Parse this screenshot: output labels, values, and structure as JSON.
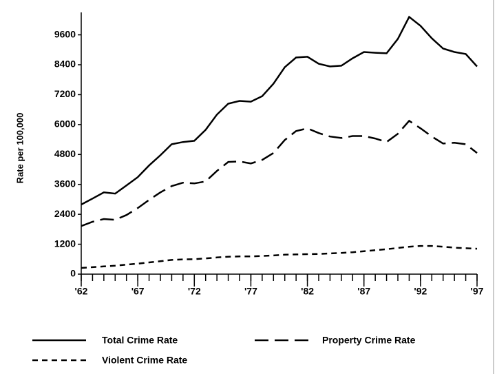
{
  "chart_data": {
    "type": "line",
    "y_label": "Rate per 100,000",
    "x": [
      1962,
      1963,
      1964,
      1965,
      1966,
      1967,
      1968,
      1969,
      1970,
      1971,
      1972,
      1973,
      1974,
      1975,
      1976,
      1977,
      1978,
      1979,
      1980,
      1981,
      1982,
      1983,
      1984,
      1985,
      1986,
      1987,
      1988,
      1989,
      1990,
      1991,
      1992,
      1993,
      1994,
      1995,
      1996,
      1997
    ],
    "series": [
      {
        "name": "Total Crime Rate",
        "color": "#000000",
        "dash": "solid",
        "values": [
          2790,
          3030,
          3280,
          3230,
          3560,
          3890,
          4360,
          4770,
          5210,
          5300,
          5350,
          5790,
          6400,
          6840,
          6950,
          6920,
          7140,
          7640,
          8300,
          8690,
          8720,
          8440,
          8330,
          8360,
          8660,
          8910,
          8880,
          8860,
          9440,
          10320,
          9960,
          9460,
          9050,
          8910,
          8830,
          8330
        ]
      },
      {
        "name": "Property Crime Rate",
        "color": "#000000",
        "dash": "long",
        "values": [
          1930,
          2100,
          2210,
          2180,
          2370,
          2650,
          2980,
          3280,
          3530,
          3670,
          3640,
          3720,
          4140,
          4500,
          4520,
          4440,
          4580,
          4860,
          5380,
          5740,
          5850,
          5660,
          5520,
          5460,
          5540,
          5540,
          5440,
          5300,
          5630,
          6150,
          5850,
          5520,
          5240,
          5270,
          5210,
          4860
        ]
      },
      {
        "name": "Violent Crime Rate",
        "color": "#000000",
        "dash": "short",
        "values": [
          250,
          280,
          310,
          340,
          380,
          420,
          470,
          520,
          570,
          590,
          600,
          630,
          670,
          700,
          710,
          710,
          730,
          750,
          780,
          790,
          800,
          810,
          830,
          850,
          880,
          920,
          960,
          1000,
          1050,
          1100,
          1130,
          1130,
          1100,
          1060,
          1040,
          1020
        ]
      }
    ],
    "xlim": [
      1962,
      1997
    ],
    "xticks": [
      {
        "value": 1962,
        "label": "'62"
      },
      {
        "value": 1967,
        "label": "'67"
      },
      {
        "value": 1972,
        "label": "'72"
      },
      {
        "value": 1977,
        "label": "'77"
      },
      {
        "value": 1982,
        "label": "'82"
      },
      {
        "value": 1987,
        "label": "'87"
      },
      {
        "value": 1992,
        "label": "'92"
      },
      {
        "value": 1997,
        "label": "'97"
      }
    ],
    "ylim": [
      0,
      10500
    ],
    "yticks": [
      0,
      1200,
      2400,
      3600,
      4800,
      6000,
      7200,
      8400,
      9600
    ],
    "grid": false,
    "legend": "bottom"
  }
}
